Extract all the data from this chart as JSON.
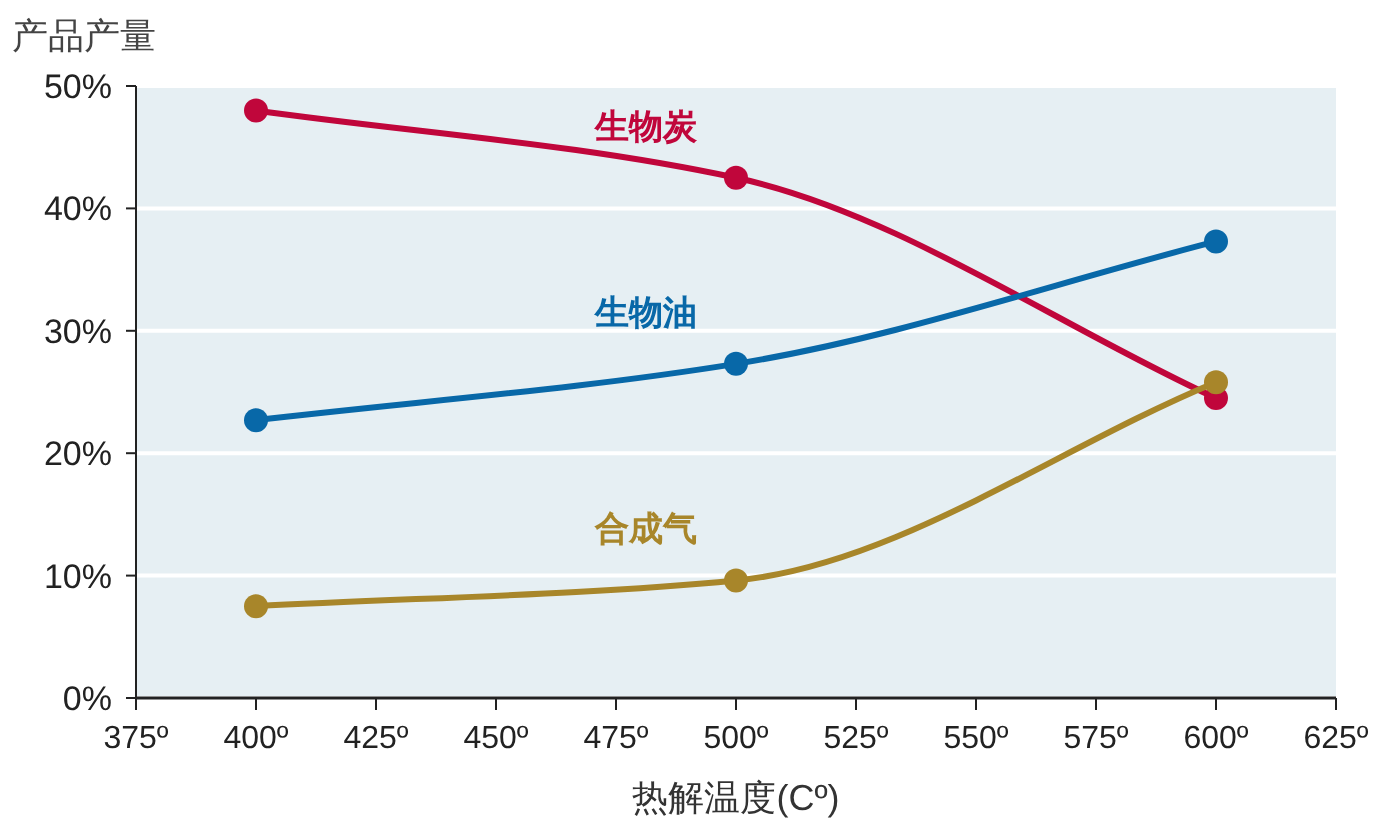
{
  "chart_data": {
    "type": "line",
    "ylabel": "产品产量",
    "xlabel": "热解温度(Cº)",
    "x": [
      400,
      500,
      600
    ],
    "series": [
      {
        "name": "生物炭",
        "color": "#c0063b",
        "values": [
          48,
          42.5,
          24.5
        ]
      },
      {
        "name": "生物油",
        "color": "#0868a8",
        "values": [
          22.7,
          27.3,
          37.3
        ]
      },
      {
        "name": "合成气",
        "color": "#a8862a",
        "values": [
          7.5,
          9.6,
          25.8
        ]
      }
    ],
    "xlim": [
      375,
      625
    ],
    "xticks": [
      {
        "value": 375,
        "label": "375º"
      },
      {
        "value": 400,
        "label": "400º"
      },
      {
        "value": 425,
        "label": "425º"
      },
      {
        "value": 450,
        "label": "450º"
      },
      {
        "value": 475,
        "label": "475º"
      },
      {
        "value": 500,
        "label": "500º"
      },
      {
        "value": 525,
        "label": "525º"
      },
      {
        "value": 550,
        "label": "550º"
      },
      {
        "value": 575,
        "label": "575º"
      },
      {
        "value": 600,
        "label": "600º"
      },
      {
        "value": 625,
        "label": "625º"
      }
    ],
    "ylim": [
      0,
      50
    ],
    "yticks": [
      {
        "value": 0,
        "label": "0%"
      },
      {
        "value": 10,
        "label": "10%"
      },
      {
        "value": 20,
        "label": "20%"
      },
      {
        "value": 30,
        "label": "30%"
      },
      {
        "value": 40,
        "label": "40%"
      },
      {
        "value": 50,
        "label": "50%"
      }
    ],
    "grid": "y",
    "marker": "circle",
    "line_style": "solid"
  }
}
